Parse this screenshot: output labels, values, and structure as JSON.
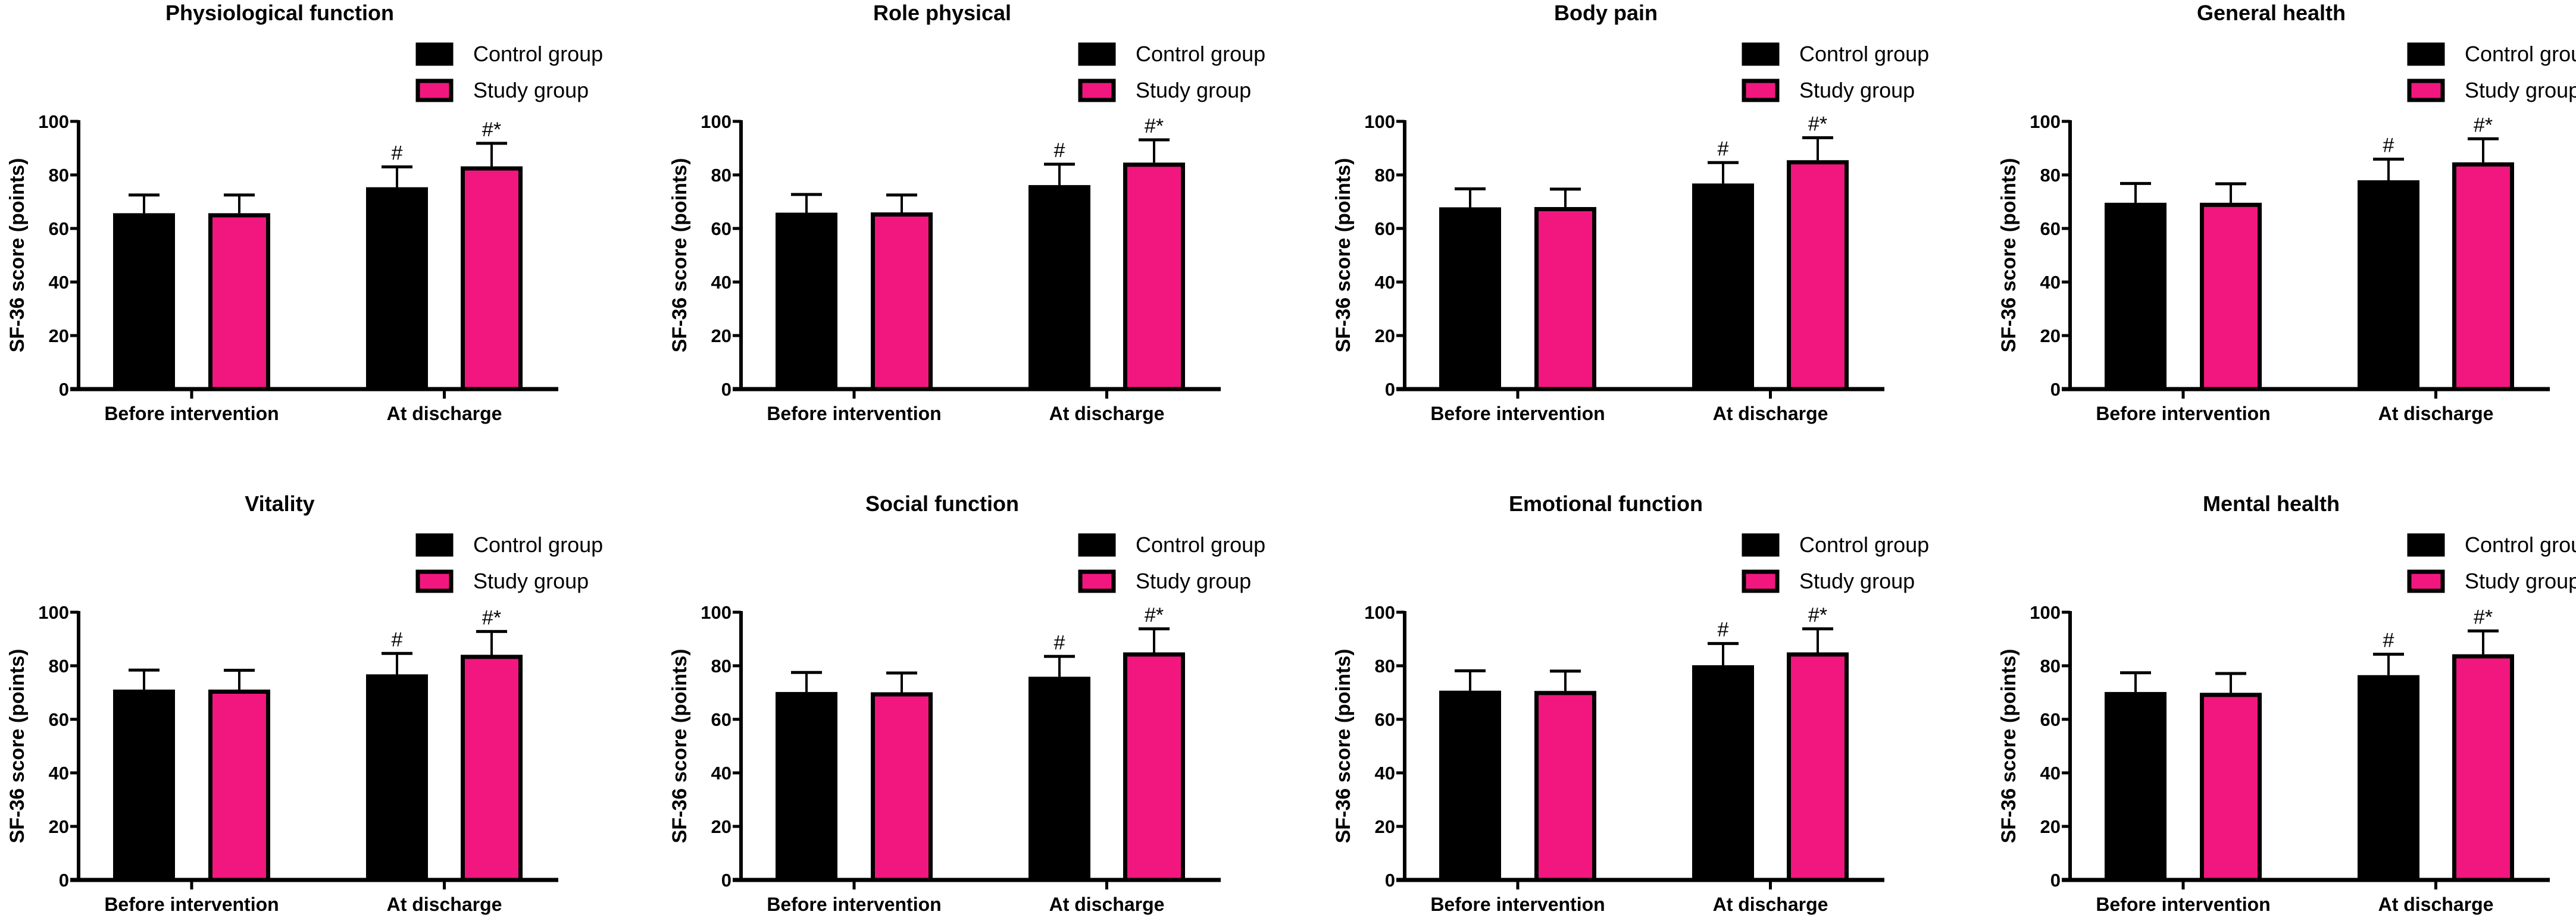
{
  "chart_data": [
    {
      "type": "bar",
      "title": "Physiological function",
      "ylabel": "SF-36 score (points)",
      "xlabel": "",
      "ylim": [
        0,
        100
      ],
      "yticks": [
        "0",
        "20",
        "40",
        "60",
        "80",
        "100"
      ],
      "categories": [
        "Before intervention",
        "At discharge"
      ],
      "series": [
        {
          "name": "Control group",
          "values": [
            65.7,
            75.4
          ],
          "error": [
            6.8,
            7.6
          ],
          "annotations": [
            "",
            "#"
          ]
        },
        {
          "name": "Study group",
          "values": [
            65.7,
            83.2
          ],
          "error": [
            6.8,
            8.6
          ],
          "annotations": [
            "",
            "#*"
          ]
        }
      ]
    },
    {
      "type": "bar",
      "title": "Role physical",
      "ylabel": "SF-36 score (points)",
      "xlabel": "",
      "ylim": [
        0,
        100
      ],
      "yticks": [
        "0",
        "20",
        "40",
        "60",
        "80",
        "100"
      ],
      "categories": [
        "Before intervention",
        "At discharge"
      ],
      "series": [
        {
          "name": "Control group",
          "values": [
            65.9,
            76.2
          ],
          "error": [
            6.8,
            7.8
          ],
          "annotations": [
            "",
            "#"
          ]
        },
        {
          "name": "Study group",
          "values": [
            66.0,
            84.6
          ],
          "error": [
            6.5,
            8.5
          ],
          "annotations": [
            "",
            "#*"
          ]
        }
      ]
    },
    {
      "type": "bar",
      "title": "Body pain",
      "ylabel": "SF-36 score (points)",
      "xlabel": "",
      "ylim": [
        0,
        100
      ],
      "yticks": [
        "0",
        "20",
        "40",
        "60",
        "80",
        "100"
      ],
      "categories": [
        "Before intervention",
        "At discharge"
      ],
      "series": [
        {
          "name": "Control group",
          "values": [
            67.9,
            76.8
          ],
          "error": [
            6.9,
            7.8
          ],
          "annotations": [
            "",
            "#"
          ]
        },
        {
          "name": "Study group",
          "values": [
            68.0,
            85.5
          ],
          "error": [
            6.7,
            8.4
          ],
          "annotations": [
            "",
            "#*"
          ]
        }
      ]
    },
    {
      "type": "bar",
      "title": "General health",
      "ylabel": "SF-36 score (points)",
      "xlabel": "",
      "ylim": [
        0,
        100
      ],
      "yticks": [
        "0",
        "20",
        "40",
        "60",
        "80",
        "100"
      ],
      "categories": [
        "Before intervention",
        "At discharge"
      ],
      "series": [
        {
          "name": "Control group",
          "values": [
            69.6,
            78.0
          ],
          "error": [
            7.2,
            7.9
          ],
          "annotations": [
            "",
            "#"
          ]
        },
        {
          "name": "Study group",
          "values": [
            69.6,
            84.7
          ],
          "error": [
            7.1,
            8.8
          ],
          "annotations": [
            "",
            "#*"
          ]
        }
      ]
    },
    {
      "type": "bar",
      "title": "Vitality",
      "ylabel": "SF-36 score (points)",
      "xlabel": "",
      "ylim": [
        0,
        100
      ],
      "yticks": [
        "0",
        "20",
        "40",
        "60",
        "80",
        "100"
      ],
      "categories": [
        "Before intervention",
        "At discharge"
      ],
      "series": [
        {
          "name": "Control group",
          "values": [
            71.1,
            76.8
          ],
          "error": [
            7.3,
            7.8
          ],
          "annotations": [
            "",
            "#"
          ]
        },
        {
          "name": "Study group",
          "values": [
            71.1,
            84.1
          ],
          "error": [
            7.2,
            8.7
          ],
          "annotations": [
            "",
            "#*"
          ]
        }
      ]
    },
    {
      "type": "bar",
      "title": "Social function",
      "ylabel": "SF-36 score (points)",
      "xlabel": "",
      "ylim": [
        0,
        100
      ],
      "yticks": [
        "0",
        "20",
        "40",
        "60",
        "80",
        "100"
      ],
      "categories": [
        "Before intervention",
        "At discharge"
      ],
      "series": [
        {
          "name": "Control group",
          "values": [
            70.2,
            75.9
          ],
          "error": [
            7.3,
            7.6
          ],
          "annotations": [
            "",
            "#"
          ]
        },
        {
          "name": "Study group",
          "values": [
            70.1,
            85.0
          ],
          "error": [
            7.2,
            8.8
          ],
          "annotations": [
            "",
            "#*"
          ]
        }
      ]
    },
    {
      "type": "bar",
      "title": "Emotional function",
      "ylabel": "SF-36 score (points)",
      "xlabel": "",
      "ylim": [
        0,
        100
      ],
      "yticks": [
        "0",
        "20",
        "40",
        "60",
        "80",
        "100"
      ],
      "categories": [
        "Before intervention",
        "At discharge"
      ],
      "series": [
        {
          "name": "Control group",
          "values": [
            70.7,
            80.2
          ],
          "error": [
            7.4,
            8.1
          ],
          "annotations": [
            "",
            "#"
          ]
        },
        {
          "name": "Study group",
          "values": [
            70.6,
            85.0
          ],
          "error": [
            7.4,
            8.8
          ],
          "annotations": [
            "",
            "#*"
          ]
        }
      ]
    },
    {
      "type": "bar",
      "title": "Mental health",
      "ylabel": "SF-36 score (points)",
      "xlabel": "",
      "ylim": [
        0,
        100
      ],
      "yticks": [
        "0",
        "20",
        "40",
        "60",
        "80",
        "100"
      ],
      "categories": [
        "Before intervention",
        "At discharge"
      ],
      "series": [
        {
          "name": "Control group",
          "values": [
            70.2,
            76.5
          ],
          "error": [
            7.2,
            7.8
          ],
          "annotations": [
            "",
            "#"
          ]
        },
        {
          "name": "Study group",
          "values": [
            69.9,
            84.3
          ],
          "error": [
            7.2,
            8.7
          ],
          "annotations": [
            "",
            "#*"
          ]
        }
      ]
    }
  ],
  "colors": {
    "control": "#000000",
    "study": "#F2177F",
    "axis": "#000000"
  }
}
